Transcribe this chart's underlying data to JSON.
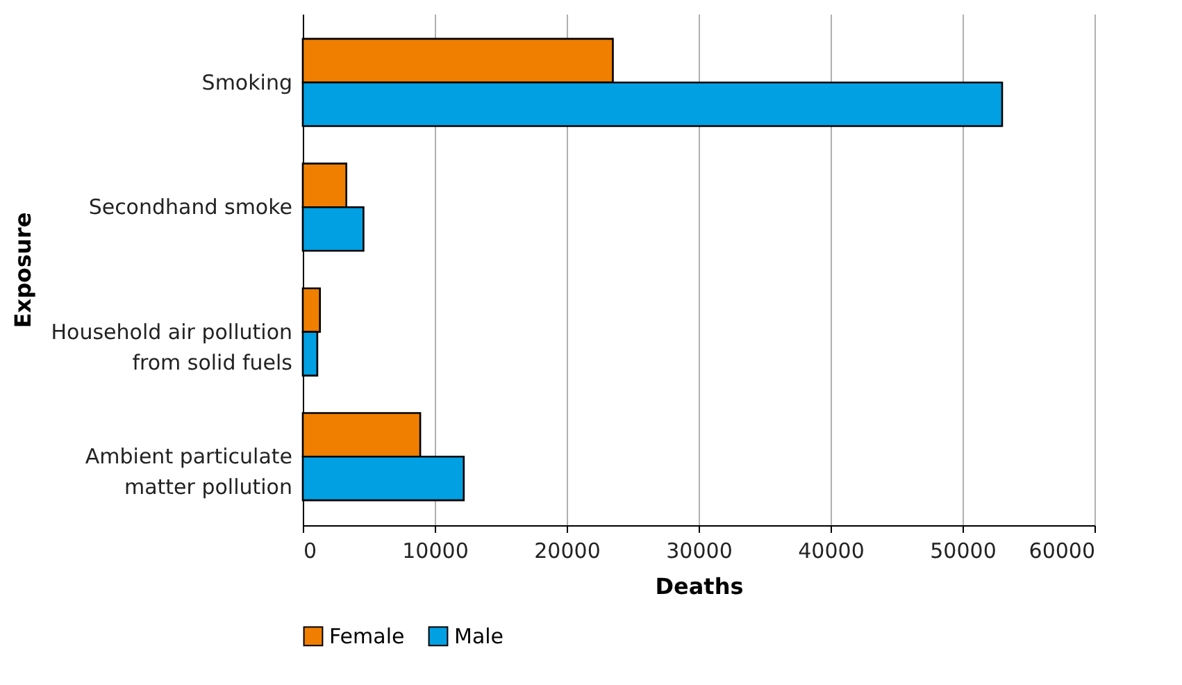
{
  "chart_data": {
    "type": "bar",
    "orientation": "horizontal",
    "xlabel": "Deaths",
    "ylabel": "Exposure",
    "categories": [
      "Smoking",
      "Secondhand smoke",
      "Household air pollution\nfrom solid fuels",
      "Ambient particulate\nmatter pollution"
    ],
    "series": [
      {
        "name": "Female",
        "color": "#f07f00",
        "values": [
          23500,
          3300,
          1300,
          8900
        ]
      },
      {
        "name": "Male",
        "color": "#00a0e3",
        "values": [
          53000,
          4600,
          1100,
          12200
        ]
      }
    ],
    "xlim": [
      0,
      60000
    ],
    "xticks": [
      0,
      10000,
      20000,
      30000,
      40000,
      50000,
      60000
    ],
    "grid": "x",
    "legend": "bottom"
  }
}
